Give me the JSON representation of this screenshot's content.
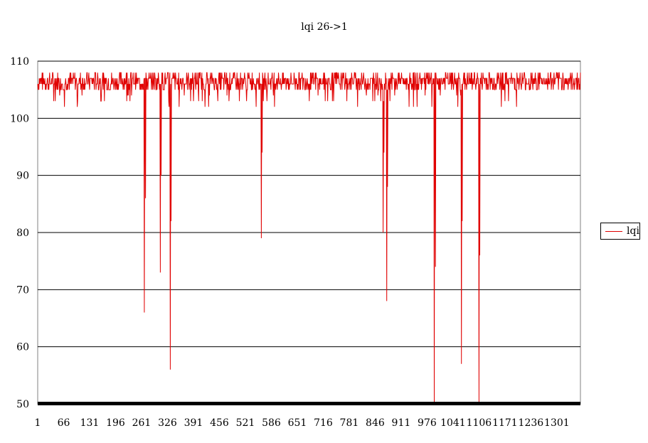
{
  "chart_data": {
    "type": "line",
    "title": "lqi 26->1",
    "xlabel": "",
    "ylabel": "",
    "ylim": [
      50,
      110
    ],
    "yticks": [
      50,
      60,
      70,
      80,
      90,
      100,
      110
    ],
    "xticks": [
      1,
      66,
      131,
      196,
      261,
      326,
      391,
      456,
      521,
      586,
      651,
      716,
      781,
      846,
      911,
      976,
      1041,
      1106,
      1171,
      1236,
      1301
    ],
    "xlim": [
      1,
      1360
    ],
    "grid": true,
    "legend": "right",
    "baseline_level": [
      105,
      108
    ],
    "series": [
      {
        "name": "lqi",
        "color": "#e00000",
        "dips": [
          {
            "x": 268,
            "y": 66
          },
          {
            "x": 271,
            "y": 86
          },
          {
            "x": 308,
            "y": 73
          },
          {
            "x": 310,
            "y": 90
          },
          {
            "x": 330,
            "y": 102
          },
          {
            "x": 333,
            "y": 56
          },
          {
            "x": 335,
            "y": 82
          },
          {
            "x": 561,
            "y": 79
          },
          {
            "x": 563,
            "y": 94
          },
          {
            "x": 866,
            "y": 80
          },
          {
            "x": 868,
            "y": 94
          },
          {
            "x": 875,
            "y": 68
          },
          {
            "x": 877,
            "y": 88
          },
          {
            "x": 994,
            "y": 50
          },
          {
            "x": 997,
            "y": 74
          },
          {
            "x": 1062,
            "y": 57
          },
          {
            "x": 1064,
            "y": 82
          },
          {
            "x": 1106,
            "y": 50
          },
          {
            "x": 1108,
            "y": 76
          }
        ]
      }
    ]
  }
}
